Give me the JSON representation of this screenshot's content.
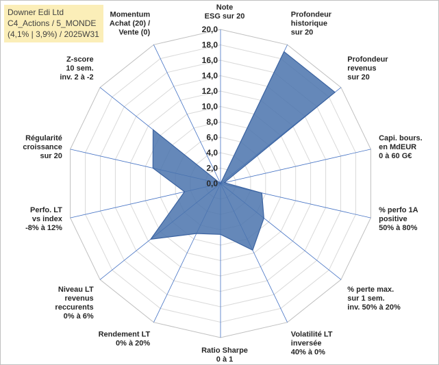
{
  "title_lines": [
    "Downer Edi Ltd",
    "C4_Actions / 5_MONDE",
    "(4,1% | 3,9%) / 2025W31"
  ],
  "chart_data": {
    "type": "radar",
    "rmin": 0,
    "rmax": 20,
    "step": 2,
    "ticks": [
      "0,0",
      "2,0",
      "4,0",
      "6,0",
      "8,0",
      "10,0",
      "12,0",
      "14,0",
      "16,0",
      "18,0",
      "20,0"
    ],
    "categories": [
      [
        "Note",
        "ESG sur 20"
      ],
      [
        "Profondeur",
        "historique",
        "sur 20"
      ],
      [
        "Profondeur",
        "revenus",
        "sur 20"
      ],
      [
        "Capi. bours.",
        "en MdEUR",
        "0 à 60 G€"
      ],
      [
        "% perfo 1A",
        "positive",
        "50% à 80%"
      ],
      [
        "% perte max.",
        "sur 1 sem.",
        "inv. 50% à 20%"
      ],
      [
        "Volatilité LT",
        "inversée",
        "40% à 0%"
      ],
      [
        "Ratio Sharpe",
        "0 à 1"
      ],
      [
        "Rendement LT",
        "0% à 20%"
      ],
      [
        "Niveau LT",
        "revenus",
        "reccurents",
        "0% à 6%"
      ],
      [
        "Perfo. LT",
        "vs index",
        "-8% à 12%"
      ],
      [
        "Régularité",
        "croissance",
        "sur 20"
      ],
      [
        "Z-score",
        "10 sem.",
        "inv. 2 à -2"
      ],
      [
        "Momentum",
        "Achat (20) /",
        "Vente (0)"
      ]
    ],
    "values": [
      0,
      19,
      19,
      0.5,
      5.5,
      7.2,
      9.6,
      6.6,
      7.2,
      11.6,
      4.8,
      9.0,
      11.2,
      0
    ],
    "colors": {
      "fill": "#4a73ad",
      "stroke": "#3a62a0",
      "grid": "#d9d9d9",
      "spoke": "#4472c4"
    }
  }
}
